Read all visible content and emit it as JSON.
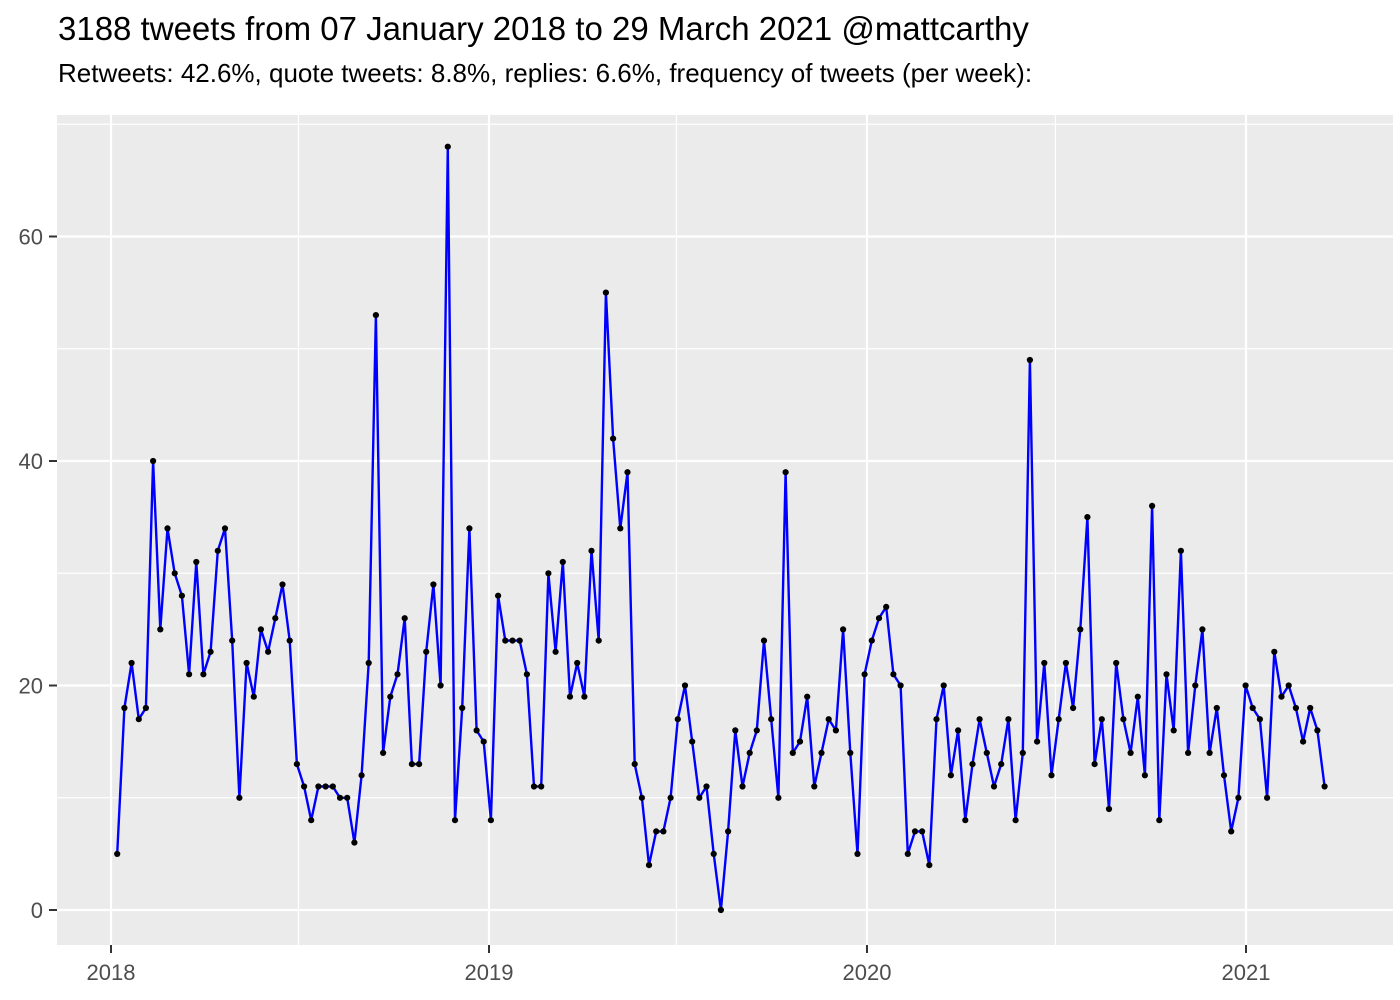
{
  "header": {
    "title": "3188 tweets from 07 January 2018 to 29 March 2021 @mattcarthy",
    "subtitle": "Retweets: 42.6%, quote tweets: 8.8%, replies: 6.6%, frequency of tweets (per week):"
  },
  "chart_data": {
    "type": "line",
    "title": "3188 tweets from 07 January 2018 to 29 March 2021 @mattcarthy",
    "subtitle": "Retweets: 42.6%, quote tweets: 8.8%, replies: 6.6%, frequency of tweets (per week):",
    "xlabel": "",
    "ylabel": "",
    "legend": "none",
    "grid": "on",
    "panel_background": "#EBEBEB",
    "grid_color": "#FFFFFF",
    "axis_text_color": "#4D4D4D",
    "tick_color": "#333333",
    "line_color": "#0000FF",
    "point_color": "#000000",
    "y_ticks": [
      0,
      20,
      40,
      60
    ],
    "y_minor_ticks": [
      10,
      30,
      50,
      70
    ],
    "ylim": [
      -3.1,
      70.9
    ],
    "x_tick_labels": [
      "2018",
      "2019",
      "2020",
      "2021"
    ],
    "x_tick_dates": [
      "2018-01-01",
      "2019-01-01",
      "2020-01-01",
      "2021-01-01"
    ],
    "x_minor_dates": [
      "2018-07-01",
      "2019-07-01",
      "2020-07-01"
    ],
    "series": [
      {
        "name": "tweets per week",
        "start_date": "2018-01-07",
        "end_date": "2021-03-28",
        "interval_days": 7,
        "total": 3188,
        "values": [
          5,
          18,
          22,
          17,
          18,
          40,
          25,
          34,
          30,
          28,
          21,
          31,
          21,
          23,
          32,
          34,
          24,
          10,
          22,
          19,
          25,
          23,
          26,
          29,
          24,
          13,
          11,
          8,
          11,
          11,
          11,
          10,
          10,
          6,
          12,
          22,
          53,
          14,
          19,
          21,
          26,
          13,
          13,
          23,
          29,
          20,
          68,
          8,
          18,
          34,
          16,
          15,
          8,
          28,
          24,
          24,
          24,
          21,
          11,
          11,
          30,
          23,
          31,
          19,
          22,
          19,
          32,
          24,
          55,
          42,
          34,
          39,
          13,
          10,
          4,
          7,
          7,
          10,
          17,
          20,
          15,
          10,
          11,
          5,
          0,
          7,
          16,
          11,
          14,
          16,
          24,
          17,
          10,
          39,
          14,
          15,
          19,
          11,
          14,
          17,
          16,
          25,
          14,
          5,
          21,
          24,
          26,
          27,
          21,
          20,
          5,
          7,
          7,
          4,
          17,
          20,
          12,
          16,
          8,
          13,
          17,
          14,
          11,
          13,
          17,
          8,
          14,
          49,
          15,
          22,
          12,
          17,
          22,
          18,
          25,
          35,
          13,
          17,
          9,
          22,
          17,
          14,
          19,
          12,
          36,
          8,
          21,
          16,
          32,
          14,
          20,
          25,
          14,
          18,
          12,
          7,
          10,
          20,
          18,
          17,
          10,
          23,
          19,
          20,
          18,
          15,
          18,
          16,
          11
        ]
      }
    ]
  }
}
